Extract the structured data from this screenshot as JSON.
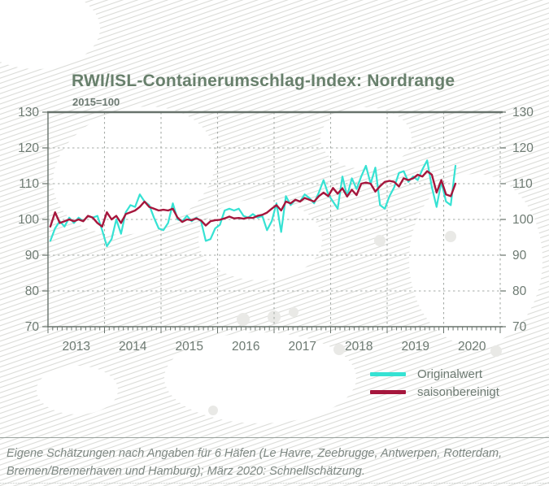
{
  "header": {
    "title": "RWI/ISL-Containerumschlag-Index: Nordrange",
    "subtitle": "2015=100"
  },
  "chart_data": {
    "type": "line",
    "frequency": "monthly",
    "x_start": "2013-01",
    "x_end": "2020-03",
    "x_tick_labels": [
      "2013",
      "2014",
      "2015",
      "2016",
      "2017",
      "2018",
      "2019",
      "2020"
    ],
    "ylim": [
      70,
      130
    ],
    "yticks": [
      70,
      80,
      90,
      100,
      110,
      120,
      130
    ],
    "grid": "dashed",
    "legend_position": "bottom-right",
    "series": [
      {
        "name": "Originalwert",
        "color": "#36e2d3",
        "values": [
          94,
          97.5,
          99.5,
          98,
          100.5,
          99,
          100.5,
          99.5,
          101,
          100.5,
          101,
          97,
          92.5,
          94.5,
          100,
          96,
          102,
          104,
          103.5,
          107,
          105,
          104,
          100.5,
          97.5,
          97,
          99,
          104.5,
          100,
          99.5,
          101,
          99.5,
          100.5,
          99.5,
          94,
          94.5,
          97.5,
          98.5,
          102.5,
          103,
          102.5,
          103,
          101,
          100.5,
          101.5,
          100.5,
          101,
          97,
          99.5,
          104.5,
          96.5,
          106.5,
          104,
          105.5,
          105,
          107,
          106,
          104.5,
          107.5,
          111,
          107,
          105,
          103,
          112,
          106.5,
          111.5,
          108.5,
          112,
          115,
          110,
          114.5,
          104,
          103,
          106.5,
          109,
          113,
          113.5,
          110.5,
          112,
          111,
          114,
          116.5,
          109,
          103.5,
          110.5,
          105,
          104,
          115
        ]
      },
      {
        "name": "saisonbereinigt",
        "color": "#a5163c",
        "values": [
          98,
          102,
          99,
          99.5,
          100,
          99.5,
          100,
          99.5,
          101,
          100.5,
          99,
          98,
          102,
          100,
          101,
          99,
          101.5,
          102,
          102.5,
          103.5,
          105,
          103.5,
          103,
          102.5,
          102.7,
          102.5,
          103,
          100.5,
          99.3,
          100,
          99.8,
          100.3,
          99.7,
          98.3,
          99.5,
          99.8,
          99.9,
          100.3,
          100.8,
          100.3,
          100.4,
          100.2,
          100.5,
          100.4,
          101,
          101.3,
          101.9,
          103,
          104,
          102.5,
          105,
          104.5,
          105.5,
          105,
          106,
          105.5,
          105,
          106.5,
          107.5,
          106.5,
          108.8,
          107.2,
          108.7,
          106.4,
          108.3,
          106.8,
          110,
          110.3,
          110,
          107.8,
          109.3,
          110.5,
          110.8,
          110.5,
          109.2,
          111.5,
          111,
          111.5,
          112.5,
          112,
          113.5,
          112.5,
          107.5,
          111,
          107,
          106.5,
          110
        ]
      }
    ]
  },
  "legend": {
    "items": [
      {
        "label": "Originalwert",
        "color": "#36e2d3"
      },
      {
        "label": "saisonbereinigt",
        "color": "#a5163c"
      }
    ]
  },
  "footer": {
    "note": "Eigene Schätzungen nach Angaben für 6 Häfen (Le Havre, Zeebrugge, Antwerpen, Rotterdam, Bremen/Bremerhaven und Hamburg); März 2020: Schnellschätzung."
  },
  "colors": {
    "title": "#68806c",
    "axis_text": "#6d7a72",
    "grid": "#a6aba7",
    "spine": "#68736c",
    "hatch": "#dbdcd8",
    "footer_text": "#7e8883"
  }
}
